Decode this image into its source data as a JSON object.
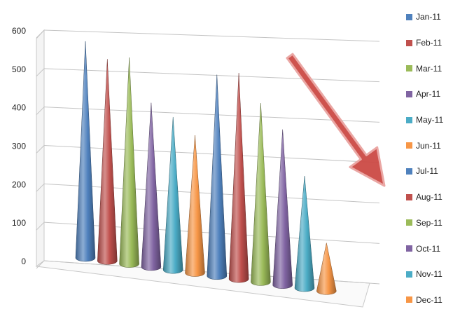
{
  "chart_data": {
    "type": "bar",
    "subtype": "3d-cone",
    "categories": [
      "Jan-11",
      "Feb-11",
      "Mar-11",
      "Apr-11",
      "May-11",
      "Jun-11",
      "Jul-11",
      "Aug-11",
      "Sep-11",
      "Oct-11",
      "Nov-11",
      "Dec-11"
    ],
    "values": [
      560,
      520,
      530,
      420,
      390,
      350,
      510,
      520,
      450,
      390,
      280,
      120
    ],
    "title": "",
    "xlabel": "",
    "ylabel": "",
    "ylim": [
      0,
      600
    ],
    "yticks": [
      "0",
      "100",
      "200",
      "300",
      "400",
      "500",
      "600"
    ],
    "grid": true,
    "legend_position": "right",
    "annotation": "red-down-arrow",
    "colors": [
      "#4f81bd",
      "#c0504d",
      "#9bbb59",
      "#8064a2",
      "#4bacc6",
      "#f79646",
      "#4f81bd",
      "#c0504d",
      "#9bbb59",
      "#8064a2",
      "#4bacc6",
      "#f79646"
    ]
  }
}
